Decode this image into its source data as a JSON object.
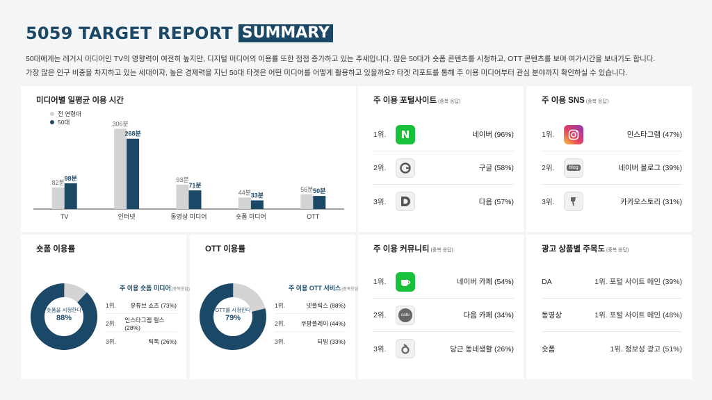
{
  "header": {
    "title": "5059 TARGET REPORT",
    "title_box": "SUMMARY",
    "intro_line1": "50대에게는 레거시 미디어인 TV의 영향력이 여전히 높지만, 디지털 미디어의 이용률 또한 점점 증가하고 있는 추세입니다. 많은 50대가 숏폼 콘텐츠를 시청하고, OTT 콘텐츠를 보며 여가시간을 보내기도 합니다.",
    "intro_line2": "가장 많은 인구 비중을 차지하고 있는 세대이자, 높은 경제력을 지닌 50대 타겟은 어떤 미디어를 어떻게 활용하고 있을까요? 타겟 리포트를 통해 주 이용 미디어부터 관심 분야까지 확인하실 수 있습니다."
  },
  "colors": {
    "primary": "#1b4866",
    "secondary": "#d3d3d3"
  },
  "media_time": {
    "title": "미디어별 일평균 이용 시간",
    "legend": [
      "전 연령대",
      "50대"
    ]
  },
  "chart_data": {
    "type": "bar",
    "categories": [
      "TV",
      "인터넷",
      "동영상 미디어",
      "숏폼 미디어",
      "OTT"
    ],
    "series": [
      {
        "name": "전 연령대",
        "values": [
          82,
          306,
          93,
          44,
          56
        ],
        "labels": [
          "82분",
          "306분",
          "93분",
          "44분",
          "56분"
        ]
      },
      {
        "name": "50대",
        "values": [
          98,
          268,
          71,
          33,
          50
        ],
        "labels": [
          "98분",
          "268분",
          "71분",
          "33분",
          "50분"
        ]
      }
    ],
    "ylim": [
      0,
      320
    ],
    "legend_position": "top-left"
  },
  "portal": {
    "title": "주 이용 포털사이트",
    "note": "(중복 응답)",
    "items": [
      {
        "rank": "1위.",
        "label": "네이버 (96%)",
        "icon": "naver-icon"
      },
      {
        "rank": "2위.",
        "label": "구글 (58%)",
        "icon": "google-icon"
      },
      {
        "rank": "3위.",
        "label": "다음 (57%)",
        "icon": "daum-icon"
      }
    ]
  },
  "sns": {
    "title": "주 이용 SNS",
    "note": "(중복 응답)",
    "items": [
      {
        "rank": "1위.",
        "label": "인스타그램 (47%)",
        "icon": "instagram-icon"
      },
      {
        "rank": "2위.",
        "label": "네이버 블로그 (39%)",
        "icon": "blog-icon",
        "icon_text": "blog"
      },
      {
        "rank": "3위.",
        "label": "카카오스토리 (31%)",
        "icon": "kakaostory-icon"
      }
    ]
  },
  "shortform": {
    "title": "숏폼 이용률",
    "donut_text": "숏폼을 시청한다",
    "donut_value": "88%",
    "percent": 88,
    "list_title": "주 이용 숏폼 미디어",
    "list_note": "(중복응답)",
    "items": [
      {
        "rank": "1위.",
        "label": "유튜브 쇼츠 (73%)"
      },
      {
        "rank": "2위.",
        "label": "인스타그램 릴스 (28%)"
      },
      {
        "rank": "3위.",
        "label": "틱톡 (26%)"
      }
    ]
  },
  "ott": {
    "title": "OTT 이용률",
    "donut_text": "OTT를 시청한다",
    "donut_value": "79%",
    "percent": 79,
    "list_title": "주 이용 OTT 서비스",
    "list_note": "(중복응답)",
    "items": [
      {
        "rank": "1위.",
        "label": "넷플릭스 (88%)"
      },
      {
        "rank": "2위.",
        "label": "쿠팡플레이 (44%)"
      },
      {
        "rank": "3위.",
        "label": "티빙 (33%)"
      }
    ]
  },
  "community": {
    "title": "주 이용 커뮤니티",
    "note": "(중복 응답)",
    "items": [
      {
        "rank": "1위.",
        "label": "네이버 카페 (54%)",
        "icon": "naver-cafe-icon"
      },
      {
        "rank": "2위.",
        "label": "다음 카페 (34%)",
        "icon": "daum-cafe-icon",
        "icon_text": "cafe"
      },
      {
        "rank": "3위.",
        "label": "당근 동네생활 (26%)",
        "icon": "daangn-icon"
      }
    ]
  },
  "ads": {
    "title": "광고 상품별 주목도",
    "note": "(중복 응답)",
    "items": [
      {
        "type": "DA",
        "value": "1위. 포털 사이트 메인 (39%)"
      },
      {
        "type": "동영상",
        "value": "1위. 포털 사이트 메인 (48%)"
      },
      {
        "type": "숏폼",
        "value": "1위. 정보성 광고 (51%)"
      }
    ]
  }
}
